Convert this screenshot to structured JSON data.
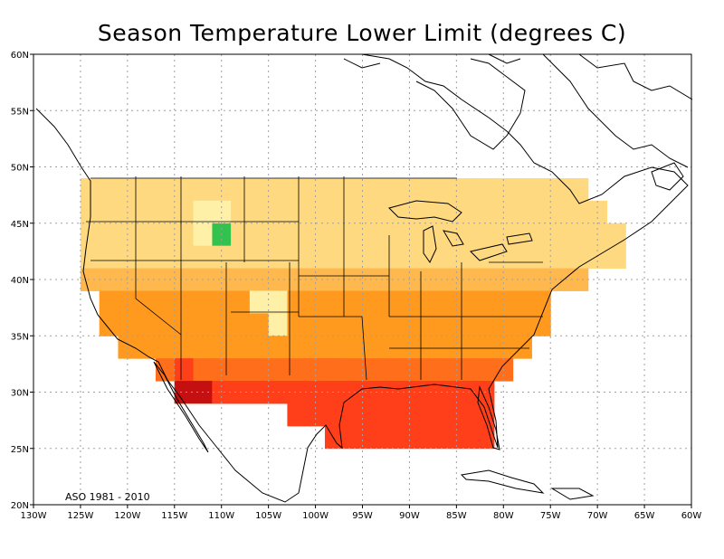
{
  "title": "Season Temperature Lower Limit (degrees C)",
  "annotation": "ASO 1981 - 2010",
  "axes": {
    "lon_min": -130,
    "lon_max": -60,
    "lat_min": 20,
    "lat_max": 60,
    "lon_step": 5,
    "lat_step": 5,
    "x_tick_labels": [
      "130W",
      "125W",
      "120W",
      "115W",
      "110W",
      "105W",
      "100W",
      "95W",
      "90W",
      "85W",
      "80W",
      "75W",
      "70W",
      "65W",
      "60W"
    ],
    "y_tick_labels": [
      "20N",
      "25N",
      "30N",
      "35N",
      "40N",
      "45N",
      "50N",
      "55N",
      "60N"
    ],
    "grid": true
  },
  "colors": {
    "pale": "#fff0a8",
    "light": "#ffd97f",
    "orange_light": "#ffb84d",
    "orange": "#ff9a1f",
    "orange_red": "#ff6e1a",
    "red": "#ff3f1a",
    "dark_red": "#c41010",
    "green": "#33c24d",
    "coast": "#000000",
    "grid": "#a0a0a0"
  }
}
